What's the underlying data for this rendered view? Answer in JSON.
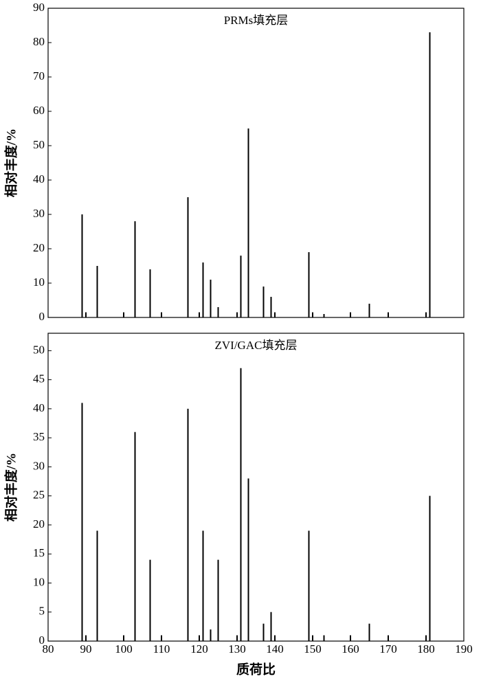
{
  "chart_data": [
    {
      "type": "bar",
      "title": "PRMs填充层",
      "ylabel": "相对丰度/%",
      "x": [
        89,
        90,
        93,
        100,
        103,
        107,
        110,
        117,
        120,
        121,
        123,
        125,
        130,
        131,
        133,
        137,
        139,
        140,
        149,
        150,
        153,
        160,
        165,
        170,
        180,
        181
      ],
      "values": [
        30,
        1.5,
        15,
        1.5,
        28,
        14,
        1.5,
        35,
        1.5,
        16,
        11,
        3,
        1.5,
        18,
        55,
        9,
        6,
        1.5,
        19,
        1.5,
        1,
        1.5,
        4,
        1.5,
        1.5,
        83
      ],
      "color": "#000000",
      "xlim": [
        80,
        190
      ],
      "ylim": [
        0,
        90
      ],
      "yticks": [
        0,
        10,
        20,
        30,
        40,
        50,
        60,
        70,
        80,
        90
      ]
    },
    {
      "type": "bar",
      "title": "ZVI/GAC填充层",
      "ylabel": "相对丰度/%",
      "xlabel": "质荷比",
      "x": [
        89,
        90,
        93,
        100,
        103,
        107,
        110,
        117,
        120,
        121,
        123,
        125,
        130,
        131,
        133,
        137,
        139,
        140,
        149,
        150,
        153,
        160,
        165,
        170,
        180,
        181
      ],
      "values": [
        41,
        1,
        19,
        1,
        36,
        14,
        1,
        40,
        1,
        19,
        2,
        14,
        1,
        47,
        28,
        3,
        5,
        1,
        19,
        1,
        1,
        1,
        3,
        1,
        1,
        25
      ],
      "color": "#000000",
      "xlim": [
        80,
        190
      ],
      "ylim": [
        0,
        53
      ],
      "yticks": [
        0,
        5,
        10,
        15,
        20,
        25,
        30,
        35,
        40,
        45,
        50
      ],
      "xticks": [
        80,
        90,
        100,
        110,
        120,
        130,
        140,
        150,
        160,
        170,
        180,
        190
      ]
    }
  ]
}
